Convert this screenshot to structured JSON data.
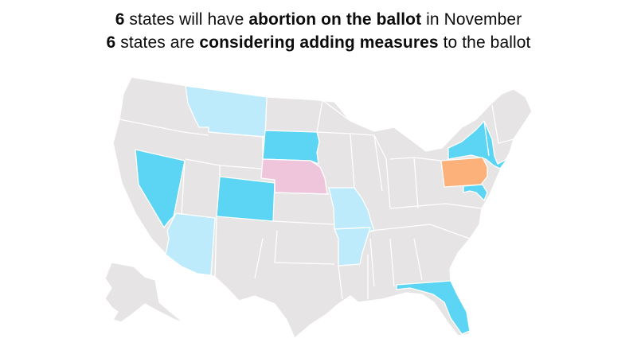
{
  "headline": {
    "line1": {
      "count": "6",
      "pre": " states will have ",
      "emphasis": "abortion on the ballot",
      "post": " in November"
    },
    "line2": {
      "count": "6",
      "pre": " states are ",
      "emphasis": "considering adding measures",
      "post": " to the ballot"
    }
  },
  "colors": {
    "on_ballot": "#5bd5f3",
    "considering_measures": "#bdebfb",
    "pink": "#efc5dc",
    "orange": "#fcb17a",
    "default_state": "#e6e4e5",
    "border": "#ffffff"
  },
  "states": {
    "on_ballot": [
      "Nevada",
      "Colorado",
      "South Dakota",
      "New York",
      "Maryland",
      "Florida"
    ],
    "considering_measures": [
      "Montana",
      "Arizona",
      "Missouri",
      "Arkansas"
    ],
    "pink": [
      "Nebraska"
    ],
    "orange": [
      "Pennsylvania"
    ]
  }
}
